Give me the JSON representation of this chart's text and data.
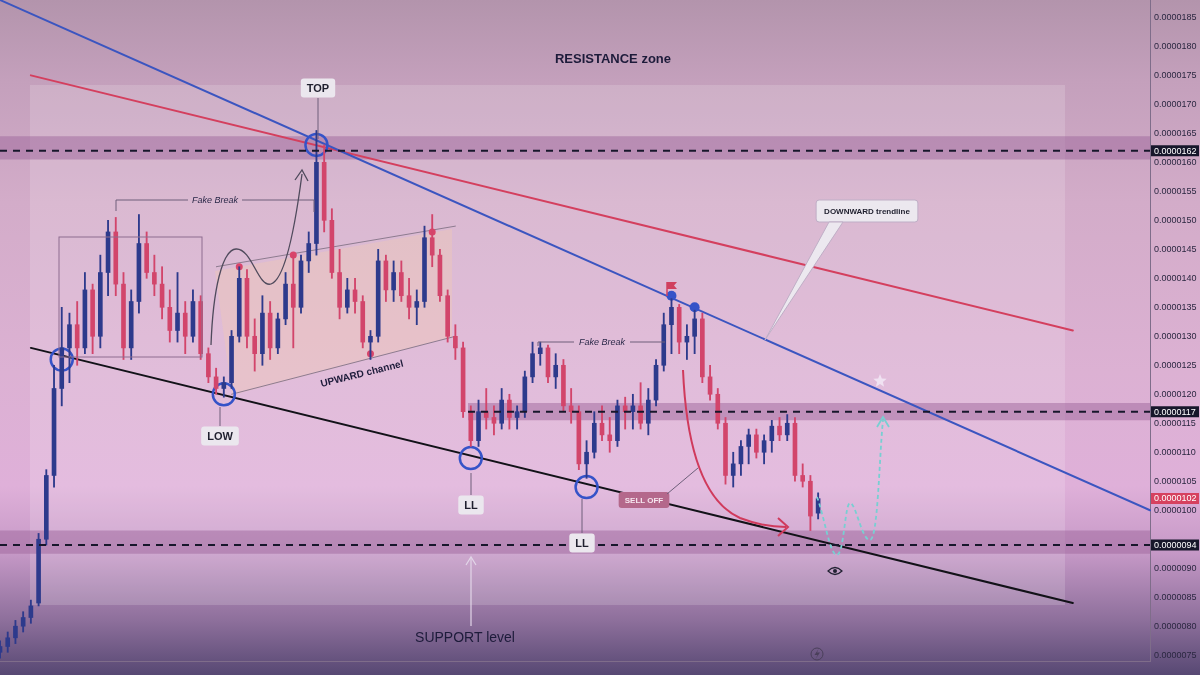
{
  "chart_data": {
    "type": "candlestick",
    "categories": [
      null,
      null,
      null,
      null,
      null,
      null,
      null,
      null,
      null,
      null,
      null,
      null,
      null,
      null,
      null,
      null,
      null,
      null,
      null,
      null,
      null,
      null,
      null,
      null,
      null,
      null,
      null,
      null,
      null,
      null,
      null,
      null,
      null,
      null,
      null,
      null,
      null,
      null,
      null,
      null,
      null,
      null,
      null,
      null,
      null,
      null,
      null,
      null,
      null,
      null,
      null,
      null,
      null,
      null,
      null,
      null,
      null,
      null,
      null,
      null,
      null,
      null,
      null,
      null,
      null,
      null,
      null,
      null,
      null,
      null,
      null,
      null,
      null,
      null,
      null,
      null,
      null,
      null,
      null,
      null,
      null,
      null,
      null,
      null,
      null,
      null,
      null,
      null,
      null,
      null,
      null,
      null,
      null,
      null,
      null,
      null,
      null,
      null,
      null,
      null,
      null,
      null,
      null,
      null,
      null,
      null,
      null,
      null,
      null,
      null,
      null,
      null,
      null,
      null,
      null,
      null,
      null,
      null,
      null,
      null,
      null,
      null,
      null,
      null,
      null,
      null,
      null,
      null,
      null,
      null,
      null,
      null,
      null,
      null,
      null,
      null,
      null,
      null,
      null,
      null,
      null,
      null,
      null,
      null,
      null,
      null,
      null,
      null,
      null,
      null
    ],
    "ohlc": [
      [
        7.55e-06,
        7.75e-06,
        7.45e-06,
        7.65e-06
      ],
      [
        7.65e-06,
        7.9e-06,
        7.55e-06,
        7.8e-06
      ],
      [
        7.8e-06,
        8.1e-06,
        7.7e-06,
        8e-06
      ],
      [
        8e-06,
        8.25e-06,
        7.9e-06,
        8.15e-06
      ],
      [
        8.15e-06,
        8.45e-06,
        8.05e-06,
        8.35e-06
      ],
      [
        8.4e-06,
        9.6e-06,
        8.35e-06,
        9.5e-06
      ],
      [
        9.5e-06,
        1.07e-05,
        9.4e-06,
        1.06e-05
      ],
      [
        1.06e-05,
        1.25e-05,
        1.04e-05,
        1.21e-05
      ],
      [
        1.21e-05,
        1.35e-05,
        1.18e-05,
        1.28e-05
      ],
      [
        1.28e-05,
        1.34e-05,
        1.22e-05,
        1.32e-05
      ],
      [
        1.32e-05,
        1.36e-05,
        1.25e-05,
        1.28e-05
      ],
      [
        1.28e-05,
        1.41e-05,
        1.27e-05,
        1.38e-05
      ],
      [
        1.38e-05,
        1.39e-05,
        1.27e-05,
        1.3e-05
      ],
      [
        1.3e-05,
        1.44e-05,
        1.28e-05,
        1.41e-05
      ],
      [
        1.41e-05,
        1.5e-05,
        1.37e-05,
        1.48e-05
      ],
      [
        1.48e-05,
        1.505e-05,
        1.37e-05,
        1.39e-05
      ],
      [
        1.39e-05,
        1.41e-05,
        1.26e-05,
        1.28e-05
      ],
      [
        1.28e-05,
        1.38e-05,
        1.26e-05,
        1.36e-05
      ],
      [
        1.36e-05,
        1.51e-05,
        1.34e-05,
        1.46e-05
      ],
      [
        1.46e-05,
        1.48e-05,
        1.4e-05,
        1.41e-05
      ],
      [
        1.41e-05,
        1.44e-05,
        1.37e-05,
        1.39e-05
      ],
      [
        1.39e-05,
        1.42e-05,
        1.33e-05,
        1.35e-05
      ],
      [
        1.35e-05,
        1.38e-05,
        1.29e-05,
        1.31e-05
      ],
      [
        1.31e-05,
        1.41e-05,
        1.29e-05,
        1.34e-05
      ],
      [
        1.34e-05,
        1.36e-05,
        1.27e-05,
        1.3e-05
      ],
      [
        1.3e-05,
        1.38e-05,
        1.29e-05,
        1.36e-05
      ],
      [
        1.36e-05,
        1.37e-05,
        1.26e-05,
        1.27e-05
      ],
      [
        1.27e-05,
        1.28e-05,
        1.22e-05,
        1.23e-05
      ],
      [
        1.23e-05,
        1.245e-05,
        1.2e-05,
        1.21e-05
      ],
      [
        1.21e-05,
        1.23e-05,
        1.195e-05,
        1.22e-05
      ],
      [
        1.22e-05,
        1.31e-05,
        1.21e-05,
        1.3e-05
      ],
      [
        1.3e-05,
        1.42e-05,
        1.29e-05,
        1.4e-05
      ],
      [
        1.4e-05,
        1.415e-05,
        1.28e-05,
        1.3e-05
      ],
      [
        1.3e-05,
        1.33e-05,
        1.24e-05,
        1.27e-05
      ],
      [
        1.27e-05,
        1.37e-05,
        1.25e-05,
        1.34e-05
      ],
      [
        1.34e-05,
        1.36e-05,
        1.26e-05,
        1.28e-05
      ],
      [
        1.28e-05,
        1.34e-05,
        1.27e-05,
        1.33e-05
      ],
      [
        1.33e-05,
        1.41e-05,
        1.32e-05,
        1.39e-05
      ],
      [
        1.39e-05,
        1.44e-05,
        1.28e-05,
        1.35e-05
      ],
      [
        1.35e-05,
        1.44e-05,
        1.34e-05,
        1.43e-05
      ],
      [
        1.43e-05,
        1.48e-05,
        1.41e-05,
        1.46e-05
      ],
      [
        1.46e-05,
        1.655e-05,
        1.44e-05,
        1.6e-05
      ],
      [
        1.6e-05,
        1.63e-05,
        1.48e-05,
        1.5e-05
      ],
      [
        1.5e-05,
        1.52e-05,
        1.4e-05,
        1.41e-05
      ],
      [
        1.41e-05,
        1.45e-05,
        1.33e-05,
        1.35e-05
      ],
      [
        1.35e-05,
        1.4e-05,
        1.34e-05,
        1.38e-05
      ],
      [
        1.38e-05,
        1.4e-05,
        1.34e-05,
        1.36e-05
      ],
      [
        1.36e-05,
        1.37e-05,
        1.28e-05,
        1.29e-05
      ],
      [
        1.29e-05,
        1.31e-05,
        1.26e-05,
        1.3e-05
      ],
      [
        1.3e-05,
        1.45e-05,
        1.29e-05,
        1.43e-05
      ],
      [
        1.43e-05,
        1.44e-05,
        1.36e-05,
        1.38e-05
      ],
      [
        1.38e-05,
        1.43e-05,
        1.36e-05,
        1.41e-05
      ],
      [
        1.41e-05,
        1.43e-05,
        1.36e-05,
        1.37e-05
      ],
      [
        1.37e-05,
        1.4e-05,
        1.33e-05,
        1.35e-05
      ],
      [
        1.35e-05,
        1.38e-05,
        1.32e-05,
        1.36e-05
      ],
      [
        1.36e-05,
        1.49e-05,
        1.35e-05,
        1.47e-05
      ],
      [
        1.47e-05,
        1.51e-05,
        1.42e-05,
        1.44e-05
      ],
      [
        1.44e-05,
        1.45e-05,
        1.36e-05,
        1.37e-05
      ],
      [
        1.37e-05,
        1.38e-05,
        1.29e-05,
        1.3e-05
      ],
      [
        1.3e-05,
        1.32e-05,
        1.26e-05,
        1.28e-05
      ],
      [
        1.28e-05,
        1.29e-05,
        1.16e-05,
        1.17e-05
      ],
      [
        1.17e-05,
        1.18e-05,
        1.11e-05,
        1.12e-05
      ],
      [
        1.12e-05,
        1.19e-05,
        1.11e-05,
        1.17e-05
      ],
      [
        1.17e-05,
        1.21e-05,
        1.14e-05,
        1.16e-05
      ],
      [
        1.16e-05,
        1.18e-05,
        1.13e-05,
        1.15e-05
      ],
      [
        1.15e-05,
        1.21e-05,
        1.14e-05,
        1.19e-05
      ],
      [
        1.19e-05,
        1.2e-05,
        1.14e-05,
        1.16e-05
      ],
      [
        1.16e-05,
        1.18e-05,
        1.14e-05,
        1.17e-05
      ],
      [
        1.17e-05,
        1.24e-05,
        1.16e-05,
        1.23e-05
      ],
      [
        1.23e-05,
        1.29e-05,
        1.22e-05,
        1.27e-05
      ],
      [
        1.27e-05,
        1.29e-05,
        1.25e-05,
        1.28e-05
      ],
      [
        1.28e-05,
        1.285e-05,
        1.22e-05,
        1.23e-05
      ],
      [
        1.23e-05,
        1.27e-05,
        1.21e-05,
        1.25e-05
      ],
      [
        1.25e-05,
        1.26e-05,
        1.17e-05,
        1.18e-05
      ],
      [
        1.18e-05,
        1.21e-05,
        1.15e-05,
        1.17e-05
      ],
      [
        1.17e-05,
        1.18e-05,
        1.07e-05,
        1.08e-05
      ],
      [
        1.08e-05,
        1.12e-05,
        1.055e-05,
        1.1e-05
      ],
      [
        1.1e-05,
        1.17e-05,
        1.09e-05,
        1.15e-05
      ],
      [
        1.15e-05,
        1.18e-05,
        1.12e-05,
        1.13e-05
      ],
      [
        1.13e-05,
        1.16e-05,
        1.1e-05,
        1.12e-05
      ],
      [
        1.12e-05,
        1.19e-05,
        1.11e-05,
        1.18e-05
      ],
      [
        1.18e-05,
        1.195e-05,
        1.14e-05,
        1.17e-05
      ],
      [
        1.17e-05,
        1.2e-05,
        1.14e-05,
        1.18e-05
      ],
      [
        1.18e-05,
        1.22e-05,
        1.14e-05,
        1.15e-05
      ],
      [
        1.15e-05,
        1.21e-05,
        1.13e-05,
        1.19e-05
      ],
      [
        1.19e-05,
        1.26e-05,
        1.18e-05,
        1.25e-05
      ],
      [
        1.25e-05,
        1.34e-05,
        1.24e-05,
        1.32e-05
      ],
      [
        1.32e-05,
        1.365e-05,
        1.27e-05,
        1.35e-05
      ],
      [
        1.35e-05,
        1.355e-05,
        1.27e-05,
        1.29e-05
      ],
      [
        1.29e-05,
        1.32e-05,
        1.26e-05,
        1.3e-05
      ],
      [
        1.3e-05,
        1.345e-05,
        1.27e-05,
        1.33e-05
      ],
      [
        1.33e-05,
        1.34e-05,
        1.22e-05,
        1.23e-05
      ],
      [
        1.23e-05,
        1.25e-05,
        1.19e-05,
        1.2e-05
      ],
      [
        1.2e-05,
        1.21e-05,
        1.14e-05,
        1.15e-05
      ],
      [
        1.15e-05,
        1.16e-05,
        1.045e-05,
        1.06e-05
      ],
      [
        1.06e-05,
        1.1e-05,
        1.04e-05,
        1.08e-05
      ],
      [
        1.08e-05,
        1.12e-05,
        1.06e-05,
        1.11e-05
      ],
      [
        1.11e-05,
        1.14e-05,
        1.08e-05,
        1.13e-05
      ],
      [
        1.13e-05,
        1.14e-05,
        1.09e-05,
        1.1e-05
      ],
      [
        1.1e-05,
        1.13e-05,
        1.08e-05,
        1.12e-05
      ],
      [
        1.12e-05,
        1.155e-05,
        1.1e-05,
        1.145e-05
      ],
      [
        1.145e-05,
        1.16e-05,
        1.12e-05,
        1.13e-05
      ],
      [
        1.13e-05,
        1.165e-05,
        1.12e-05,
        1.15e-05
      ],
      [
        1.15e-05,
        1.16e-05,
        1.05e-05,
        1.06e-05
      ],
      [
        1.06e-05,
        1.08e-05,
        1.04e-05,
        1.05e-05
      ],
      [
        1.05e-05,
        1.06e-05,
        9.65e-06,
        9.9e-06
      ],
      [
        9.95e-06,
        1.03e-05,
        9.85e-06,
        1.02e-05
      ],
      null,
      null,
      null,
      null,
      null,
      null,
      null,
      null,
      null,
      null,
      null,
      null,
      null,
      null,
      null,
      null,
      null,
      null,
      null,
      null,
      null,
      null,
      null,
      null,
      null,
      null,
      null,
      null,
      null,
      null,
      null,
      null,
      null,
      null,
      null,
      null,
      null,
      null,
      null,
      null,
      null,
      null,
      null
    ],
    "colors": [
      "#2d3a8c",
      "#2d3a8c",
      "#2d3a8c",
      "#2d3a8c",
      "#2d3a8c",
      "#2d3a8c",
      "#2d3a8c",
      "#2d3a8c",
      "#2d3a8c",
      "#2d3a8c",
      "#d2456b",
      "#2d3a8c",
      "#d2456b",
      "#2d3a8c",
      "#2d3a8c",
      "#d2456b",
      "#d2456b",
      "#2d3a8c",
      "#2d3a8c",
      "#d2456b",
      "#d2456b",
      "#d2456b",
      "#d2456b",
      "#2d3a8c",
      "#d2456b",
      "#2d3a8c",
      "#d2456b",
      "#d2456b",
      "#d2456b",
      "#2d3a8c",
      "#2d3a8c",
      "#2d3a8c",
      "#d2456b",
      "#d2456b",
      "#2d3a8c",
      "#d2456b",
      "#2d3a8c",
      "#2d3a8c",
      "#d2456b",
      "#2d3a8c",
      "#2d3a8c",
      "#2d3a8c",
      "#d2456b",
      "#d2456b",
      "#d2456b",
      "#2d3a8c",
      "#d2456b",
      "#d2456b",
      "#2d3a8c",
      "#2d3a8c",
      "#d2456b",
      "#2d3a8c",
      "#d2456b",
      "#d2456b",
      "#2d3a8c",
      "#2d3a8c",
      "#d2456b",
      "#d2456b",
      "#d2456b",
      "#d2456b",
      "#d2456b",
      "#d2456b",
      "#2d3a8c",
      "#d2456b",
      "#d2456b",
      "#2d3a8c",
      "#d2456b",
      "#2d3a8c",
      "#2d3a8c",
      "#2d3a8c",
      "#2d3a8c",
      "#d2456b",
      "#2d3a8c",
      "#d2456b",
      "#d2456b",
      "#d2456b",
      "#2d3a8c",
      "#2d3a8c",
      "#d2456b",
      "#d2456b",
      "#2d3a8c",
      "#d2456b",
      "#2d3a8c",
      "#d2456b",
      "#2d3a8c",
      "#2d3a8c",
      "#2d3a8c",
      "#2d3a8c",
      "#d2456b",
      "#2d3a8c",
      "#2d3a8c",
      "#d2456b",
      "#d2456b",
      "#d2456b",
      "#d2456b",
      "#2d3a8c",
      "#2d3a8c",
      "#2d3a8c",
      "#d2456b",
      "#2d3a8c",
      "#2d3a8c",
      "#d2456b",
      "#2d3a8c",
      "#d2456b",
      "#d2456b",
      "#d2456b",
      "#2d3a8c",
      null,
      null,
      null,
      null,
      null,
      null,
      null,
      null,
      null,
      null,
      null,
      null,
      null,
      null,
      null,
      null,
      null,
      null,
      null,
      null,
      null,
      null,
      null,
      null,
      null,
      null,
      null,
      null,
      null,
      null,
      null,
      null,
      null,
      null,
      null,
      null,
      null,
      null,
      null,
      null,
      null,
      null,
      null
    ],
    "series": [
      {
        "type": "line",
        "color": "#3b55c0",
        "values": [
          1.88e-05,
          null,
          null,
          null,
          null,
          null,
          null,
          null,
          null,
          null,
          null,
          null,
          null,
          null,
          null,
          null,
          null,
          null,
          null,
          null,
          null,
          null,
          null,
          null,
          null,
          null,
          null,
          null,
          null,
          null,
          null,
          null,
          null,
          null,
          null,
          null,
          null,
          null,
          null,
          null,
          null,
          null,
          null,
          null,
          null,
          null,
          null,
          null,
          null,
          null,
          null,
          null,
          null,
          null,
          null,
          null,
          null,
          null,
          null,
          null,
          null,
          null,
          null,
          null,
          null,
          null,
          null,
          null,
          null,
          null,
          null,
          null,
          null,
          null,
          null,
          null,
          null,
          null,
          null,
          null,
          null,
          null,
          null,
          null,
          null,
          null,
          null,
          null,
          null,
          null,
          null,
          null,
          null,
          null,
          null,
          null,
          null,
          null,
          null,
          null,
          null,
          null,
          null,
          null,
          null,
          null,
          null,
          null,
          null,
          null,
          null,
          null,
          null,
          null,
          null,
          null,
          null,
          null,
          null,
          null,
          null,
          null,
          null,
          null,
          null,
          null,
          null,
          null,
          null,
          null,
          null,
          null,
          null,
          null,
          null,
          null,
          null,
          null,
          null,
          null,
          null,
          null,
          null,
          null,
          null,
          null,
          null,
          null,
          null,
          1e-05
        ]
      },
      {
        "type": "line",
        "color": "#d43f5e",
        "values": [
          null,
          null,
          null,
          null,
          1.75e-05,
          null,
          null,
          null,
          null,
          null,
          null,
          null,
          null,
          null,
          null,
          null,
          null,
          null,
          null,
          null,
          null,
          null,
          null,
          null,
          null,
          null,
          null,
          null,
          null,
          null,
          null,
          null,
          null,
          null,
          null,
          null,
          null,
          null,
          null,
          null,
          null,
          null,
          null,
          null,
          null,
          null,
          null,
          null,
          null,
          null,
          null,
          null,
          null,
          null,
          null,
          null,
          null,
          null,
          null,
          null,
          null,
          null,
          null,
          null,
          null,
          null,
          null,
          null,
          null,
          null,
          null,
          null,
          null,
          null,
          null,
          null,
          null,
          null,
          null,
          null,
          null,
          null,
          null,
          null,
          null,
          null,
          null,
          null,
          null,
          null,
          null,
          null,
          null,
          null,
          null,
          null,
          null,
          null,
          null,
          null,
          null,
          null,
          null,
          null,
          null,
          null,
          null,
          null,
          null,
          null,
          null,
          null,
          null,
          null,
          null,
          null,
          null,
          null,
          null,
          null,
          null,
          null,
          null,
          null,
          null,
          null,
          null,
          null,
          null,
          null,
          null,
          null,
          null,
          null,
          null,
          null,
          null,
          null,
          null,
          1.31e-05,
          null,
          null,
          null,
          null,
          null,
          null,
          null,
          null,
          null,
          null
        ]
      },
      {
        "type": "line",
        "color": "#121218",
        "values": [
          null,
          null,
          null,
          null,
          1.28e-05,
          null,
          null,
          null,
          null,
          null,
          null,
          null,
          null,
          null,
          null,
          null,
          null,
          null,
          null,
          null,
          null,
          null,
          null,
          null,
          null,
          null,
          null,
          null,
          null,
          null,
          null,
          null,
          null,
          null,
          null,
          null,
          null,
          null,
          null,
          null,
          null,
          null,
          null,
          null,
          null,
          null,
          null,
          null,
          null,
          null,
          null,
          null,
          null,
          null,
          null,
          null,
          null,
          null,
          null,
          null,
          null,
          null,
          null,
          null,
          null,
          null,
          null,
          null,
          null,
          null,
          null,
          null,
          null,
          null,
          null,
          null,
          null,
          null,
          null,
          null,
          null,
          null,
          null,
          null,
          null,
          null,
          null,
          null,
          null,
          null,
          null,
          null,
          null,
          null,
          null,
          null,
          null,
          null,
          null,
          null,
          null,
          null,
          null,
          null,
          null,
          null,
          null,
          null,
          null,
          null,
          null,
          null,
          null,
          null,
          null,
          null,
          null,
          null,
          null,
          null,
          null,
          null,
          null,
          null,
          null,
          null,
          null,
          null,
          null,
          null,
          null,
          null,
          null,
          null,
          null,
          null,
          null,
          null,
          null,
          8.4e-06,
          null,
          null,
          null,
          null,
          null,
          null,
          null,
          null,
          null,
          null
        ]
      },
      {
        "type": "line",
        "color": "#8d7b8f",
        "values": [
          null,
          null,
          null,
          null,
          null,
          null,
          null,
          null,
          null,
          null,
          null,
          null,
          null,
          null,
          null,
          null,
          null,
          null,
          null,
          null,
          null,
          null,
          null,
          null,
          null,
          null,
          null,
          null,
          1.42e-05,
          null,
          null,
          null,
          null,
          null,
          null,
          null,
          null,
          null,
          null,
          null,
          null,
          null,
          null,
          null,
          null,
          null,
          null,
          null,
          null,
          null,
          null,
          null,
          null,
          null,
          null,
          null,
          null,
          null,
          null,
          1.49e-05,
          null,
          null,
          null,
          null,
          null,
          null,
          null,
          null,
          null,
          null,
          null,
          null,
          null,
          null,
          null,
          null,
          null,
          null,
          null,
          null,
          null,
          null,
          null,
          null,
          null,
          null,
          null,
          null,
          null,
          null,
          null,
          null,
          null,
          null,
          null,
          null,
          null,
          null,
          null,
          null,
          null,
          null,
          null,
          null,
          null,
          null,
          null,
          null,
          null,
          null,
          null,
          null,
          null,
          null,
          null,
          null,
          null,
          null,
          null,
          null,
          null,
          null,
          null,
          null,
          null,
          null,
          null,
          null,
          null,
          null,
          null,
          null,
          null,
          null,
          null,
          null,
          null,
          null,
          null,
          null,
          null,
          null,
          null,
          null,
          null,
          null,
          null,
          null,
          null,
          null
        ]
      },
      {
        "type": "line",
        "color": "#8d7b8f",
        "values": [
          null,
          null,
          null,
          null,
          null,
          null,
          null,
          null,
          null,
          null,
          null,
          null,
          null,
          null,
          null,
          null,
          null,
          null,
          null,
          null,
          null,
          null,
          null,
          null,
          null,
          null,
          null,
          null,
          null,
          null,
          1.2e-05,
          null,
          null,
          null,
          null,
          null,
          null,
          null,
          null,
          null,
          null,
          null,
          null,
          null,
          null,
          null,
          null,
          null,
          null,
          null,
          null,
          null,
          null,
          null,
          null,
          null,
          null,
          null,
          null,
          1.3e-05,
          null,
          null,
          null,
          null,
          null,
          null,
          null,
          null,
          null,
          null,
          null,
          null,
          null,
          null,
          null,
          null,
          null,
          null,
          null,
          null,
          null,
          null,
          null,
          null,
          null,
          null,
          null,
          null,
          null,
          null,
          null,
          null,
          null,
          null,
          null,
          null,
          null,
          null,
          null,
          null,
          null,
          null,
          null,
          null,
          null,
          null,
          null,
          null,
          null,
          null,
          null,
          null,
          null,
          null,
          null,
          null,
          null,
          null,
          null,
          null,
          null,
          null,
          null,
          null,
          null,
          null,
          null,
          null,
          null,
          null,
          null,
          null,
          null,
          null,
          null,
          null,
          null,
          null,
          null,
          null,
          null,
          null,
          null,
          null,
          null,
          null,
          null,
          null,
          null,
          null
        ]
      },
      {
        "type": "scatter",
        "color": "#3553c8",
        "marker": "circle",
        "values": [
          null,
          null,
          null,
          null,
          null,
          null,
          null,
          null,
          1.26e-05,
          null,
          null,
          null,
          null,
          null,
          null,
          null,
          null,
          null,
          null,
          null,
          null,
          null,
          null,
          null,
          null,
          null,
          null,
          null,
          null,
          1.2e-05,
          null,
          null,
          null,
          null,
          null,
          null,
          null,
          null,
          null,
          null,
          null,
          1.63e-05,
          null,
          null,
          null,
          null,
          null,
          null,
          null,
          null,
          null,
          null,
          null,
          null,
          null,
          null,
          null,
          null,
          null,
          null,
          null,
          1.09e-05,
          null,
          null,
          null,
          null,
          null,
          null,
          null,
          null,
          null,
          null,
          null,
          null,
          null,
          null,
          1.04e-05,
          null,
          null,
          null,
          null,
          null,
          null,
          null,
          null,
          null,
          null,
          null,
          null,
          null,
          null,
          null,
          null,
          null,
          null,
          null,
          null,
          null,
          null,
          null,
          null,
          null,
          null,
          null,
          null,
          null,
          null,
          null,
          null,
          null,
          null,
          null,
          null,
          null,
          null,
          null,
          null,
          null,
          null,
          null,
          null,
          null,
          null,
          null,
          null,
          null,
          null,
          null,
          null,
          null,
          null,
          null,
          null,
          null,
          null,
          null,
          null,
          null,
          null,
          null,
          null,
          null,
          null,
          null,
          null,
          null,
          null,
          null,
          null,
          null
        ]
      },
      {
        "type": "scatter",
        "color": "#3553c8",
        "marker": "circle",
        "values": [
          null,
          null,
          null,
          null,
          null,
          null,
          null,
          null,
          null,
          null,
          null,
          null,
          null,
          null,
          null,
          null,
          null,
          null,
          null,
          null,
          null,
          null,
          null,
          null,
          null,
          null,
          null,
          null,
          null,
          null,
          null,
          null,
          null,
          null,
          null,
          null,
          null,
          null,
          null,
          null,
          null,
          null,
          null,
          null,
          null,
          null,
          null,
          null,
          null,
          null,
          null,
          null,
          null,
          null,
          null,
          null,
          null,
          null,
          null,
          null,
          null,
          null,
          null,
          null,
          null,
          null,
          null,
          null,
          null,
          null,
          null,
          null,
          null,
          null,
          null,
          null,
          null,
          null,
          null,
          null,
          null,
          null,
          null,
          null,
          null,
          null,
          null,
          1.37e-05,
          null,
          null,
          1.35e-05,
          null,
          null,
          null,
          null,
          null,
          null,
          null,
          null,
          null,
          null,
          null,
          null,
          null,
          null,
          null,
          null,
          null,
          null,
          null,
          null,
          null,
          null,
          null,
          null,
          null,
          null,
          null,
          null,
          null,
          null,
          null,
          null,
          null,
          null,
          null,
          null,
          null,
          null,
          null,
          null,
          null,
          null,
          null,
          null,
          null,
          null,
          null,
          null,
          null,
          null,
          null,
          null,
          null,
          null,
          null,
          null,
          null,
          null,
          null
        ]
      },
      {
        "type": "scatter",
        "color": "#d9456a",
        "marker": "circle",
        "values": [
          null,
          null,
          null,
          null,
          null,
          null,
          null,
          null,
          null,
          null,
          null,
          null,
          null,
          null,
          null,
          null,
          null,
          null,
          null,
          null,
          null,
          null,
          null,
          null,
          null,
          null,
          null,
          null,
          null,
          null,
          null,
          1.42e-05,
          null,
          null,
          null,
          null,
          null,
          null,
          1.44e-05,
          null,
          null,
          null,
          null,
          null,
          null,
          null,
          null,
          null,
          1.27e-05,
          null,
          null,
          null,
          null,
          null,
          null,
          null,
          1.48e-05,
          null,
          null,
          null,
          null,
          null,
          null,
          null,
          null,
          null,
          null,
          null,
          null,
          null,
          null,
          null,
          null,
          null,
          null,
          null,
          null,
          null,
          null,
          null,
          null,
          null,
          null,
          null,
          null,
          null,
          null,
          null,
          null,
          null,
          null,
          null,
          null,
          null,
          null,
          null,
          null,
          null,
          null,
          null,
          null,
          null,
          null,
          null,
          null,
          null,
          null,
          null,
          null,
          null,
          null,
          null,
          null,
          null,
          null,
          null,
          null,
          null,
          null,
          null,
          null,
          null,
          null,
          null,
          null,
          null,
          null,
          null,
          null,
          null,
          null,
          null,
          null,
          null,
          null,
          null,
          null,
          null,
          null,
          null,
          null,
          null,
          null,
          null,
          null,
          null,
          null,
          null,
          null,
          null
        ]
      }
    ],
    "ylim": [
      7.4e-06,
      1.88e-05
    ],
    "yticks": [
      {
        "value": 7.5e-06,
        "label": "0.0000075"
      },
      {
        "value": 8e-06,
        "label": "0.0000080"
      },
      {
        "value": 8.5e-06,
        "label": "0.0000085"
      },
      {
        "value": 9e-06,
        "label": "0.0000090"
      },
      {
        "value": 1e-05,
        "label": "0.0000100"
      },
      {
        "value": 1.05e-05,
        "label": "0.0000105"
      },
      {
        "value": 1.1e-05,
        "label": "0.0000110"
      },
      {
        "value": 1.15e-05,
        "label": "0.0000115"
      },
      {
        "value": 1.2e-05,
        "label": "0.0000120"
      },
      {
        "value": 1.25e-05,
        "label": "0.0000125"
      },
      {
        "value": 1.3e-05,
        "label": "0.0000130"
      },
      {
        "value": 1.35e-05,
        "label": "0.0000135"
      },
      {
        "value": 1.4e-05,
        "label": "0.0000140"
      },
      {
        "value": 1.45e-05,
        "label": "0.0000145"
      },
      {
        "value": 1.5e-05,
        "label": "0.0000150"
      },
      {
        "value": 1.55e-05,
        "label": "0.0000155"
      },
      {
        "value": 1.6e-05,
        "label": "0.0000160"
      },
      {
        "value": 1.65e-05,
        "label": "0.0000165"
      },
      {
        "value": 1.7e-05,
        "label": "0.0000170"
      },
      {
        "value": 1.75e-05,
        "label": "0.0000175"
      },
      {
        "value": 1.8e-05,
        "label": "0.0000180"
      },
      {
        "value": 1.85e-05,
        "label": "0.0000185"
      }
    ],
    "ref_lines": [
      {
        "axis": "y",
        "value": 1.62e-05,
        "label": "0.0000162",
        "color": "#17172b",
        "line_style": "dashed"
      },
      {
        "axis": "y",
        "value": 1.17e-05,
        "label": "0.0000117",
        "color": "#17172b",
        "line_style": "dashed"
      },
      {
        "axis": "y",
        "value": 9.4e-06,
        "label": "0.0000094",
        "color": "#17172b",
        "line_style": "dashed"
      }
    ],
    "bands": [
      {
        "axis": "y",
        "from": 1.605e-05,
        "to": 1.645e-05,
        "color": "#9e669c"
      },
      {
        "axis": "y",
        "from": 1.155e-05,
        "to": 1.185e-05,
        "color": "#9e669c"
      },
      {
        "axis": "y",
        "from": 9.25e-06,
        "to": 9.65e-06,
        "color": "#9e669c"
      }
    ],
    "annotations": [
      "RESISTANCE zone",
      "TOP",
      "Fake Break",
      "UPWARD channel",
      "LOW",
      "LL",
      "Fake Break",
      "LL",
      "SELL OFF",
      "DOWNWARD trendline",
      "SUPPORT level",
      "0.0000102"
    ],
    "tick_labels": "y"
  }
}
